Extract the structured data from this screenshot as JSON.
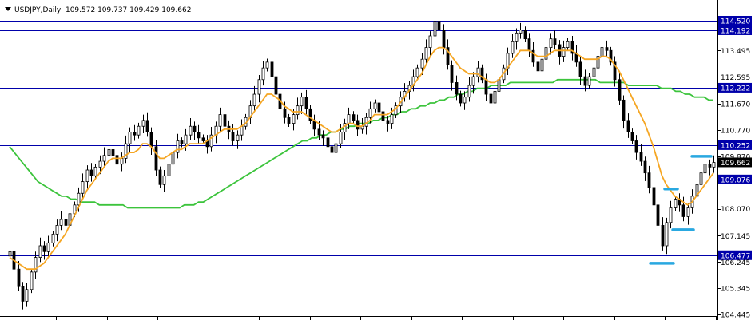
{
  "header": {
    "symbol_label": "USDJPY,Daily",
    "ohlc_label": "109.572 109.737 109.429 109.662"
  },
  "colors": {
    "background": "#ffffff",
    "hline": "#0000aa",
    "fast_ma": "#f5a623",
    "slow_ma": "#3cc43c",
    "candle": "#000000",
    "marker": "#29a8e0",
    "price_box": "#000000"
  },
  "chart_data": {
    "type": "candlestick",
    "symbol": "USDJPY",
    "timeframe": "Daily",
    "ohlc": {
      "open": 109.572,
      "high": 109.737,
      "low": 109.429,
      "close": 109.662
    },
    "ylim": [
      104.445,
      115.0
    ],
    "y_tick_labels": [
      "114.520",
      "114.192",
      "113.495",
      "112.595",
      "112.222",
      "111.670",
      "110.770",
      "110.252",
      "109.870",
      "109.662",
      "109.076",
      "108.070",
      "107.145",
      "106.477",
      "106.245",
      "105.345",
      "104.445"
    ],
    "y_ticks": [
      {
        "value": 114.52,
        "label": "114.520",
        "boxed": true
      },
      {
        "value": 114.192,
        "label": "114.192",
        "boxed": true
      },
      {
        "value": 113.495,
        "label": "113.495",
        "boxed": false
      },
      {
        "value": 112.595,
        "label": "112.595",
        "boxed": false
      },
      {
        "value": 112.222,
        "label": "112.222",
        "boxed": true
      },
      {
        "value": 111.67,
        "label": "111.670",
        "boxed": false
      },
      {
        "value": 110.77,
        "label": "110.770",
        "boxed": false
      },
      {
        "value": 110.252,
        "label": "110.252",
        "boxed": true
      },
      {
        "value": 109.87,
        "label": "109.870",
        "boxed": false
      },
      {
        "value": 109.662,
        "label": "109.662",
        "boxed": "current"
      },
      {
        "value": 109.076,
        "label": "109.076",
        "boxed": true
      },
      {
        "value": 108.07,
        "label": "108.070",
        "boxed": false
      },
      {
        "value": 107.145,
        "label": "107.145",
        "boxed": false
      },
      {
        "value": 106.477,
        "label": "106.477",
        "boxed": true
      },
      {
        "value": 106.245,
        "label": "106.245",
        "boxed": false
      },
      {
        "value": 105.345,
        "label": "105.345",
        "boxed": false
      },
      {
        "value": 104.445,
        "label": "104.445",
        "boxed": false
      }
    ],
    "horizontal_lines": [
      114.52,
      114.192,
      112.222,
      110.252,
      109.076,
      106.477
    ],
    "closes": [
      106.6,
      106.0,
      105.4,
      104.9,
      105.3,
      105.9,
      106.4,
      106.8,
      106.6,
      106.9,
      107.2,
      107.5,
      107.7,
      107.5,
      107.9,
      108.2,
      108.6,
      109.0,
      109.4,
      109.2,
      109.5,
      109.7,
      109.9,
      110.1,
      109.9,
      109.6,
      109.8,
      110.3,
      110.7,
      110.6,
      110.9,
      111.1,
      110.7,
      110.2,
      109.4,
      108.9,
      109.2,
      109.6,
      110.0,
      110.4,
      110.3,
      110.6,
      110.9,
      110.7,
      110.5,
      110.4,
      110.2,
      110.6,
      110.9,
      111.3,
      110.9,
      110.7,
      110.4,
      110.6,
      110.9,
      111.2,
      111.6,
      112.0,
      112.5,
      112.9,
      113.1,
      112.6,
      112.0,
      111.5,
      111.2,
      111.0,
      111.3,
      111.6,
      111.9,
      111.5,
      111.1,
      110.8,
      110.6,
      110.5,
      110.2,
      110.0,
      110.3,
      110.7,
      111.0,
      111.3,
      111.1,
      110.8,
      110.9,
      111.2,
      111.5,
      111.7,
      111.4,
      111.1,
      111.0,
      111.3,
      111.6,
      111.9,
      112.1,
      112.3,
      112.6,
      112.9,
      113.2,
      113.6,
      114.0,
      114.5,
      114.2,
      113.6,
      113.0,
      112.4,
      112.0,
      111.7,
      111.9,
      112.3,
      112.6,
      112.9,
      112.5,
      112.0,
      111.7,
      112.1,
      112.5,
      112.9,
      113.4,
      113.8,
      114.1,
      114.2,
      113.9,
      113.5,
      113.1,
      112.8,
      113.2,
      113.6,
      113.9,
      113.7,
      113.3,
      113.6,
      113.8,
      113.4,
      113.1,
      112.6,
      112.3,
      112.6,
      112.9,
      113.3,
      113.6,
      113.5,
      113.1,
      112.5,
      111.8,
      111.1,
      110.7,
      110.4,
      110.0,
      109.7,
      109.3,
      108.8,
      108.2,
      107.5,
      106.8,
      107.6,
      108.1,
      108.4,
      108.2,
      107.8,
      108.1,
      108.5,
      108.9,
      109.3,
      109.6,
      109.5,
      109.66
    ],
    "fast_ma": {
      "period_label": "",
      "values": [
        106.4,
        106.3,
        106.2,
        106.1,
        106.0,
        106.0,
        106.0,
        106.1,
        106.2,
        106.4,
        106.6,
        106.8,
        107.0,
        107.2,
        107.5,
        107.8,
        108.1,
        108.4,
        108.7,
        108.9,
        109.1,
        109.3,
        109.5,
        109.7,
        109.8,
        109.8,
        109.8,
        109.9,
        110.0,
        110.0,
        110.1,
        110.3,
        110.3,
        110.2,
        110.0,
        109.8,
        109.8,
        109.9,
        110.0,
        110.1,
        110.1,
        110.2,
        110.3,
        110.3,
        110.3,
        110.3,
        110.4,
        110.5,
        110.6,
        110.7,
        110.8,
        110.8,
        110.8,
        110.8,
        110.9,
        111.0,
        111.2,
        111.4,
        111.6,
        111.8,
        112.0,
        112.0,
        111.9,
        111.8,
        111.6,
        111.5,
        111.4,
        111.4,
        111.4,
        111.3,
        111.2,
        111.1,
        111.0,
        110.9,
        110.8,
        110.7,
        110.7,
        110.8,
        110.9,
        111.0,
        111.0,
        110.9,
        110.9,
        111.0,
        111.1,
        111.3,
        111.3,
        111.3,
        111.3,
        111.4,
        111.5,
        111.7,
        111.9,
        112.1,
        112.3,
        112.5,
        112.7,
        113.0,
        113.3,
        113.5,
        113.6,
        113.6,
        113.5,
        113.3,
        113.1,
        112.9,
        112.8,
        112.7,
        112.7,
        112.7,
        112.6,
        112.5,
        112.4,
        112.4,
        112.5,
        112.7,
        112.9,
        113.1,
        113.3,
        113.5,
        113.5,
        113.5,
        113.4,
        113.3,
        113.3,
        113.3,
        113.4,
        113.5,
        113.5,
        113.5,
        113.5,
        113.5,
        113.4,
        113.3,
        113.2,
        113.2,
        113.2,
        113.2,
        113.3,
        113.3,
        113.2,
        113.0,
        112.8,
        112.5,
        112.2,
        111.9,
        111.6,
        111.3,
        111.0,
        110.6,
        110.2,
        109.7,
        109.2,
        108.9,
        108.7,
        108.5,
        108.4,
        108.3,
        108.2,
        108.3,
        108.5,
        108.7,
        108.9,
        109.1,
        109.3
      ]
    },
    "slow_ma": {
      "period_label": "",
      "values": [
        110.2,
        110.0,
        109.8,
        109.6,
        109.4,
        109.2,
        109.0,
        108.9,
        108.8,
        108.7,
        108.6,
        108.5,
        108.5,
        108.4,
        108.4,
        108.3,
        108.3,
        108.3,
        108.3,
        108.2,
        108.2,
        108.2,
        108.2,
        108.2,
        108.2,
        108.1,
        108.1,
        108.1,
        108.1,
        108.1,
        108.1,
        108.1,
        108.1,
        108.1,
        108.1,
        108.1,
        108.1,
        108.2,
        108.2,
        108.2,
        108.3,
        108.3,
        108.4,
        108.5,
        108.6,
        108.7,
        108.8,
        108.9,
        109.0,
        109.1,
        109.2,
        109.3,
        109.4,
        109.5,
        109.6,
        109.7,
        109.8,
        109.9,
        110.0,
        110.1,
        110.2,
        110.3,
        110.4,
        110.4,
        110.5,
        110.5,
        110.6,
        110.6,
        110.7,
        110.7,
        110.8,
        110.8,
        110.9,
        110.9,
        111.0,
        111.0,
        111.0,
        111.1,
        111.1,
        111.2,
        111.2,
        111.3,
        111.3,
        111.4,
        111.4,
        111.5,
        111.5,
        111.6,
        111.6,
        111.7,
        111.7,
        111.8,
        111.8,
        111.9,
        111.9,
        112.0,
        112.0,
        112.1,
        112.1,
        112.2,
        112.2,
        112.2,
        112.3,
        112.3,
        112.3,
        112.3,
        112.4,
        112.4,
        112.4,
        112.4,
        112.4,
        112.4,
        112.4,
        112.4,
        112.4,
        112.4,
        112.5,
        112.5,
        112.5,
        112.5,
        112.5,
        112.5,
        112.5,
        112.5,
        112.5,
        112.4,
        112.4,
        112.4,
        112.4,
        112.4,
        112.4,
        112.3,
        112.3,
        112.3,
        112.3,
        112.3,
        112.3,
        112.3,
        112.2,
        112.2,
        112.2,
        112.1,
        112.1,
        112.0,
        112.0,
        111.9,
        111.9,
        111.9,
        111.8,
        111.8
      ]
    },
    "markers": [
      {
        "price": 108.75,
        "x_frac": 0.0
      },
      {
        "price": 109.87,
        "x_frac": 0.0
      },
      {
        "price": 107.35,
        "x_frac": 0.0
      },
      {
        "price": 106.2,
        "x_frac": 0.0
      }
    ]
  }
}
